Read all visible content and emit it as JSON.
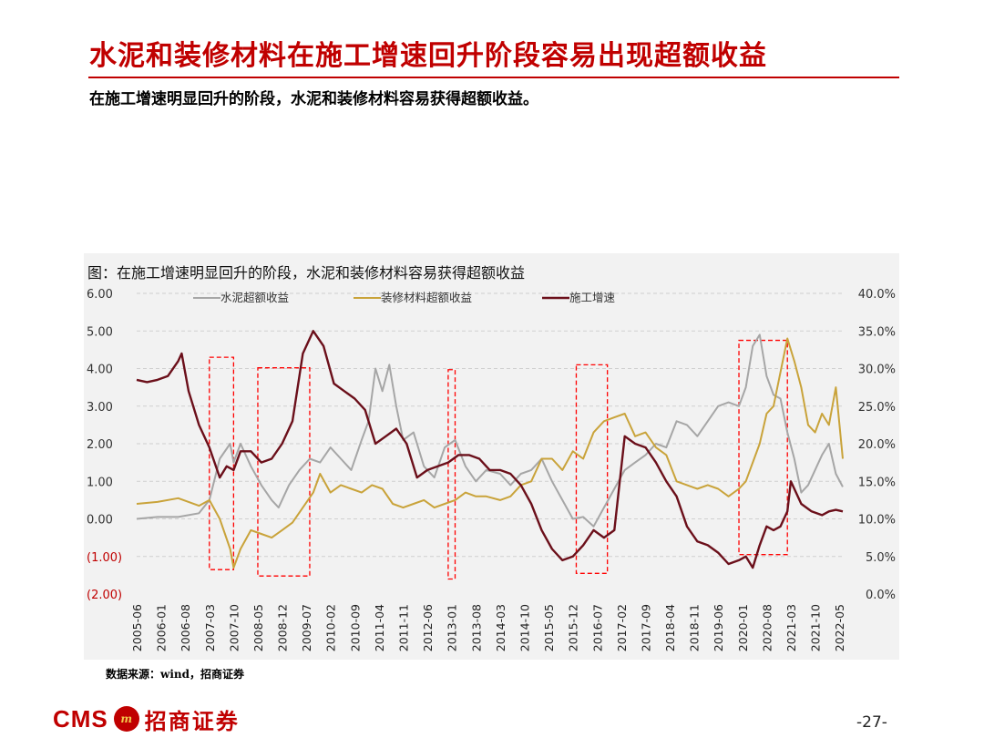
{
  "slide": {
    "title": "水泥和装修材料在施工增速回升阶段容易出现超额收益",
    "subtitle": "在施工增速明显回升的阶段，水泥和装修材料容易获得超额收益。",
    "source": "数据来源：wind，招商证券",
    "page": "-27-",
    "logo_text": "CMS",
    "logo_cn": "招商证券"
  },
  "chart_data": {
    "type": "line",
    "title": "图：在施工增速明显回升的阶段，水泥和装修材料容易获得超额收益",
    "legend_position": "top",
    "grid": true,
    "y_left": {
      "range": [
        -2,
        6
      ],
      "ticks": [
        "6.00",
        "5.00",
        "4.00",
        "3.00",
        "2.00",
        "1.00",
        "0.00",
        "(1.00)",
        "(2.00)"
      ]
    },
    "y_right": {
      "range": [
        0,
        40
      ],
      "ticks": [
        "40.0%",
        "35.0%",
        "30.0%",
        "25.0%",
        "20.0%",
        "15.0%",
        "10.0%",
        "5.0%",
        "0.0%"
      ]
    },
    "x_ticks": [
      "2005-06",
      "2006-01",
      "2006-08",
      "2007-03",
      "2007-10",
      "2008-05",
      "2008-12",
      "2009-07",
      "2010-02",
      "2010-09",
      "2011-04",
      "2011-11",
      "2012-06",
      "2013-01",
      "2013-08",
      "2014-03",
      "2014-10",
      "2015-05",
      "2015-12",
      "2016-07",
      "2017-02",
      "2017-09",
      "2018-04",
      "2018-11",
      "2019-06",
      "2020-01",
      "2020-08",
      "2021-03",
      "2021-10",
      "2022-05"
    ],
    "x_range": [
      "2005-06",
      "2022-06"
    ],
    "highlight_periods": [
      {
        "start": "2007-03",
        "end": "2007-10",
        "ymin": -1.35,
        "ymax": 4.3
      },
      {
        "start": "2008-05",
        "end": "2009-08",
        "ymin": -1.52,
        "ymax": 4.02
      },
      {
        "start": "2012-12",
        "end": "2013-02",
        "ymin": -1.6,
        "ymax": 3.97
      },
      {
        "start": "2016-01",
        "end": "2016-10",
        "ymin": -1.45,
        "ymax": 4.1
      },
      {
        "start": "2019-12",
        "end": "2021-02",
        "ymin": -0.95,
        "ymax": 4.75
      }
    ],
    "series": [
      {
        "name": "水泥超额收益",
        "color": "#a6a6a6",
        "axis": "left",
        "points": [
          [
            "2005-06",
            0.0
          ],
          [
            "2005-12",
            0.05
          ],
          [
            "2006-06",
            0.05
          ],
          [
            "2006-12",
            0.15
          ],
          [
            "2007-03",
            0.5
          ],
          [
            "2007-06",
            1.6
          ],
          [
            "2007-09",
            2.0
          ],
          [
            "2007-10",
            1.5
          ],
          [
            "2007-12",
            2.0
          ],
          [
            "2008-03",
            1.4
          ],
          [
            "2008-06",
            0.9
          ],
          [
            "2008-09",
            0.5
          ],
          [
            "2008-11",
            0.3
          ],
          [
            "2009-02",
            0.9
          ],
          [
            "2009-05",
            1.3
          ],
          [
            "2009-08",
            1.6
          ],
          [
            "2009-11",
            1.5
          ],
          [
            "2010-02",
            1.9
          ],
          [
            "2010-05",
            1.6
          ],
          [
            "2010-08",
            1.3
          ],
          [
            "2010-11",
            2.1
          ],
          [
            "2011-01",
            2.6
          ],
          [
            "2011-03",
            4.0
          ],
          [
            "2011-05",
            3.4
          ],
          [
            "2011-07",
            4.1
          ],
          [
            "2011-09",
            3.0
          ],
          [
            "2011-11",
            2.1
          ],
          [
            "2012-02",
            2.3
          ],
          [
            "2012-05",
            1.4
          ],
          [
            "2012-08",
            1.1
          ],
          [
            "2012-11",
            1.9
          ],
          [
            "2013-02",
            2.1
          ],
          [
            "2013-05",
            1.4
          ],
          [
            "2013-08",
            1.0
          ],
          [
            "2013-11",
            1.3
          ],
          [
            "2014-03",
            1.2
          ],
          [
            "2014-06",
            0.9
          ],
          [
            "2014-09",
            1.2
          ],
          [
            "2014-12",
            1.3
          ],
          [
            "2015-03",
            1.6
          ],
          [
            "2015-06",
            1.0
          ],
          [
            "2015-09",
            0.5
          ],
          [
            "2015-12",
            0.0
          ],
          [
            "2016-03",
            0.05
          ],
          [
            "2016-06",
            -0.2
          ],
          [
            "2016-09",
            0.3
          ],
          [
            "2016-12",
            0.8
          ],
          [
            "2017-03",
            1.3
          ],
          [
            "2017-06",
            1.5
          ],
          [
            "2017-09",
            1.7
          ],
          [
            "2017-12",
            2.0
          ],
          [
            "2018-03",
            1.9
          ],
          [
            "2018-06",
            2.6
          ],
          [
            "2018-09",
            2.5
          ],
          [
            "2018-12",
            2.2
          ],
          [
            "2019-03",
            2.6
          ],
          [
            "2019-06",
            3.0
          ],
          [
            "2019-09",
            3.1
          ],
          [
            "2019-12",
            3.0
          ],
          [
            "2020-02",
            3.5
          ],
          [
            "2020-04",
            4.6
          ],
          [
            "2020-06",
            4.9
          ],
          [
            "2020-08",
            3.8
          ],
          [
            "2020-10",
            3.3
          ],
          [
            "2020-12",
            3.2
          ],
          [
            "2021-02",
            2.3
          ],
          [
            "2021-04",
            1.6
          ],
          [
            "2021-06",
            0.7
          ],
          [
            "2021-08",
            0.9
          ],
          [
            "2021-10",
            1.3
          ],
          [
            "2021-12",
            1.7
          ],
          [
            "2022-02",
            2.0
          ],
          [
            "2022-04",
            1.2
          ],
          [
            "2022-06",
            0.85
          ]
        ]
      },
      {
        "name": "装修材料超额收益",
        "color": "#c9a33a",
        "axis": "left",
        "points": [
          [
            "2005-06",
            0.4
          ],
          [
            "2005-12",
            0.45
          ],
          [
            "2006-06",
            0.55
          ],
          [
            "2006-12",
            0.35
          ],
          [
            "2007-03",
            0.5
          ],
          [
            "2007-06",
            0.0
          ],
          [
            "2007-09",
            -0.8
          ],
          [
            "2007-10",
            -1.3
          ],
          [
            "2007-12",
            -0.8
          ],
          [
            "2008-03",
            -0.3
          ],
          [
            "2008-06",
            -0.4
          ],
          [
            "2008-09",
            -0.5
          ],
          [
            "2008-12",
            -0.3
          ],
          [
            "2009-03",
            -0.1
          ],
          [
            "2009-06",
            0.3
          ],
          [
            "2009-09",
            0.7
          ],
          [
            "2009-11",
            1.2
          ],
          [
            "2010-02",
            0.7
          ],
          [
            "2010-05",
            0.9
          ],
          [
            "2010-08",
            0.8
          ],
          [
            "2010-11",
            0.7
          ],
          [
            "2011-02",
            0.9
          ],
          [
            "2011-05",
            0.8
          ],
          [
            "2011-08",
            0.4
          ],
          [
            "2011-11",
            0.3
          ],
          [
            "2012-02",
            0.4
          ],
          [
            "2012-05",
            0.5
          ],
          [
            "2012-08",
            0.3
          ],
          [
            "2012-11",
            0.4
          ],
          [
            "2013-02",
            0.5
          ],
          [
            "2013-05",
            0.7
          ],
          [
            "2013-08",
            0.6
          ],
          [
            "2013-11",
            0.6
          ],
          [
            "2014-03",
            0.5
          ],
          [
            "2014-06",
            0.6
          ],
          [
            "2014-09",
            0.9
          ],
          [
            "2014-12",
            1.0
          ],
          [
            "2015-03",
            1.6
          ],
          [
            "2015-06",
            1.6
          ],
          [
            "2015-09",
            1.3
          ],
          [
            "2015-12",
            1.8
          ],
          [
            "2016-03",
            1.6
          ],
          [
            "2016-06",
            2.3
          ],
          [
            "2016-09",
            2.6
          ],
          [
            "2016-12",
            2.7
          ],
          [
            "2017-03",
            2.8
          ],
          [
            "2017-06",
            2.2
          ],
          [
            "2017-09",
            2.3
          ],
          [
            "2017-12",
            1.9
          ],
          [
            "2018-03",
            1.7
          ],
          [
            "2018-06",
            1.0
          ],
          [
            "2018-09",
            0.9
          ],
          [
            "2018-12",
            0.8
          ],
          [
            "2019-03",
            0.9
          ],
          [
            "2019-06",
            0.8
          ],
          [
            "2019-09",
            0.6
          ],
          [
            "2019-12",
            0.8
          ],
          [
            "2020-02",
            1.0
          ],
          [
            "2020-04",
            1.5
          ],
          [
            "2020-06",
            2.0
          ],
          [
            "2020-08",
            2.8
          ],
          [
            "2020-10",
            3.0
          ],
          [
            "2020-12",
            3.9
          ],
          [
            "2021-02",
            4.8
          ],
          [
            "2021-04",
            4.2
          ],
          [
            "2021-06",
            3.5
          ],
          [
            "2021-08",
            2.5
          ],
          [
            "2021-10",
            2.3
          ],
          [
            "2021-12",
            2.8
          ],
          [
            "2022-02",
            2.5
          ],
          [
            "2022-04",
            3.5
          ],
          [
            "2022-06",
            1.6
          ]
        ]
      },
      {
        "name": "施工增速",
        "color": "#6b0f1a",
        "axis": "right",
        "points": [
          [
            "2005-06",
            28.5
          ],
          [
            "2005-09",
            28.2
          ],
          [
            "2005-12",
            28.5
          ],
          [
            "2006-03",
            29.0
          ],
          [
            "2006-06",
            31.0
          ],
          [
            "2006-07",
            32.0
          ],
          [
            "2006-09",
            27.0
          ],
          [
            "2006-12",
            22.5
          ],
          [
            "2007-03",
            19.5
          ],
          [
            "2007-06",
            15.5
          ],
          [
            "2007-08",
            17.0
          ],
          [
            "2007-10",
            16.5
          ],
          [
            "2007-12",
            19.0
          ],
          [
            "2008-03",
            19.0
          ],
          [
            "2008-06",
            17.5
          ],
          [
            "2008-09",
            18.0
          ],
          [
            "2008-12",
            20.0
          ],
          [
            "2009-03",
            23.0
          ],
          [
            "2009-06",
            32.0
          ],
          [
            "2009-09",
            35.0
          ],
          [
            "2009-12",
            33.0
          ],
          [
            "2010-03",
            28.0
          ],
          [
            "2010-06",
            27.0
          ],
          [
            "2010-09",
            26.0
          ],
          [
            "2010-12",
            24.5
          ],
          [
            "2011-03",
            20.0
          ],
          [
            "2011-06",
            21.0
          ],
          [
            "2011-09",
            22.0
          ],
          [
            "2011-12",
            20.0
          ],
          [
            "2012-03",
            15.5
          ],
          [
            "2012-06",
            16.5
          ],
          [
            "2012-09",
            17.0
          ],
          [
            "2012-12",
            17.5
          ],
          [
            "2013-03",
            18.5
          ],
          [
            "2013-06",
            18.5
          ],
          [
            "2013-09",
            18.0
          ],
          [
            "2013-12",
            16.5
          ],
          [
            "2014-03",
            16.5
          ],
          [
            "2014-06",
            16.0
          ],
          [
            "2014-09",
            14.5
          ],
          [
            "2014-12",
            12.0
          ],
          [
            "2015-03",
            8.5
          ],
          [
            "2015-06",
            6.0
          ],
          [
            "2015-09",
            4.5
          ],
          [
            "2015-12",
            5.0
          ],
          [
            "2016-03",
            6.5
          ],
          [
            "2016-06",
            8.5
          ],
          [
            "2016-09",
            7.5
          ],
          [
            "2016-12",
            8.5
          ],
          [
            "2017-03",
            21.0
          ],
          [
            "2017-06",
            20.0
          ],
          [
            "2017-09",
            19.5
          ],
          [
            "2017-12",
            17.5
          ],
          [
            "2018-03",
            15.0
          ],
          [
            "2018-06",
            13.0
          ],
          [
            "2018-09",
            9.0
          ],
          [
            "2018-12",
            7.0
          ],
          [
            "2019-03",
            6.5
          ],
          [
            "2019-06",
            5.5
          ],
          [
            "2019-09",
            4.0
          ],
          [
            "2019-12",
            4.5
          ],
          [
            "2020-02",
            5.0
          ],
          [
            "2020-04",
            3.5
          ],
          [
            "2020-06",
            6.5
          ],
          [
            "2020-08",
            9.0
          ],
          [
            "2020-10",
            8.5
          ],
          [
            "2020-12",
            9.0
          ],
          [
            "2021-02",
            11.0
          ],
          [
            "2021-03",
            15.0
          ],
          [
            "2021-06",
            12.0
          ],
          [
            "2021-09",
            11.0
          ],
          [
            "2021-12",
            10.5
          ],
          [
            "2022-02",
            11.0
          ],
          [
            "2022-04",
            11.2
          ],
          [
            "2022-06",
            11.0
          ]
        ]
      }
    ]
  }
}
